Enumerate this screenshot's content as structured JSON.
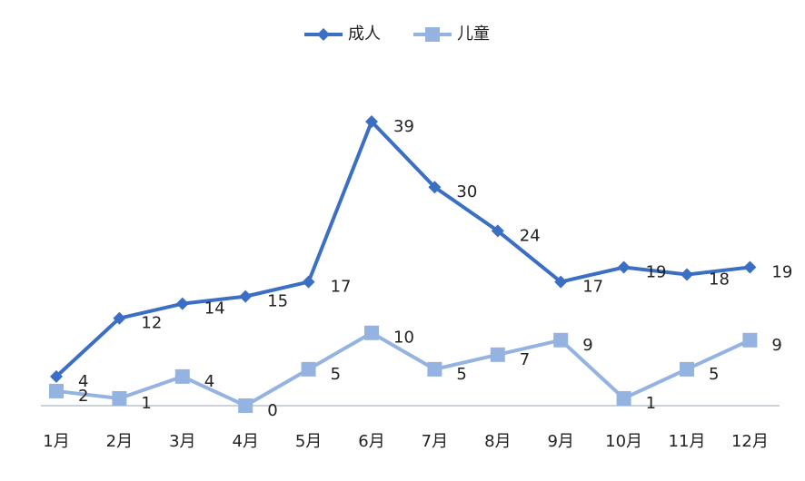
{
  "chart_data": {
    "type": "line",
    "categories": [
      "1月",
      "2月",
      "3月",
      "4月",
      "5月",
      "6月",
      "7月",
      "8月",
      "9月",
      "10月",
      "11月",
      "12月"
    ],
    "series": [
      {
        "name": "成人",
        "color": "#3a6fc4",
        "marker": "diamond",
        "values": [
          4,
          12,
          14,
          15,
          17,
          39,
          30,
          24,
          17,
          19,
          18,
          19
        ]
      },
      {
        "name": "儿童",
        "color": "#95b3e0",
        "marker": "square",
        "values": [
          2,
          1,
          4,
          0,
          5,
          10,
          5,
          7,
          9,
          1,
          5,
          9
        ]
      }
    ],
    "legend": "top"
  }
}
